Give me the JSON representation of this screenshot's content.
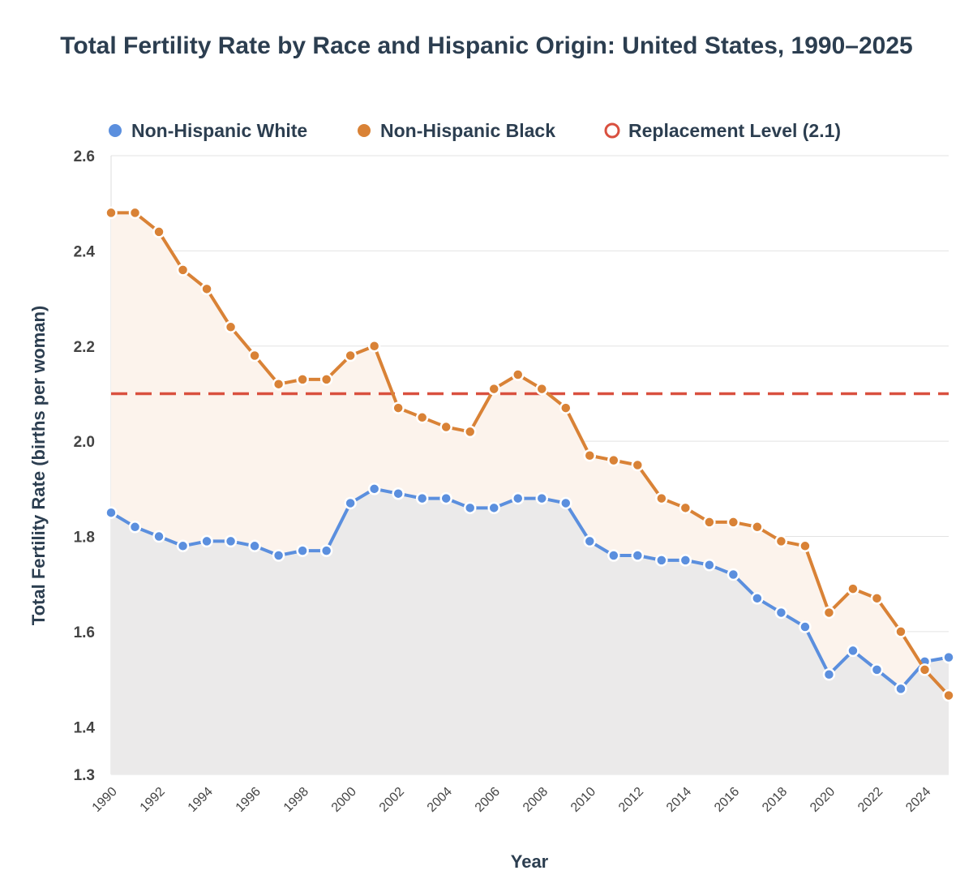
{
  "chart_data": {
    "type": "line",
    "title": "Total Fertility Rate by Race and Hispanic Origin: United States, 1990–2025",
    "xlabel": "Year",
    "ylabel": "Total Fertility Rate (births per woman)",
    "ylim": [
      1.3,
      2.6
    ],
    "yticks": [
      1.3,
      1.4,
      1.6,
      1.8,
      2.0,
      2.2,
      2.4,
      2.6
    ],
    "ytick_labels": [
      "1.3",
      "1.4",
      "1.6",
      "1.8",
      "2.0",
      "2.2",
      "2.4",
      "2.6"
    ],
    "xlim": [
      1990,
      2025
    ],
    "xtick_labels": [
      "1990",
      "1992",
      "1994",
      "1996",
      "1998",
      "2000",
      "2002",
      "2004",
      "2006",
      "2008",
      "2010",
      "2012",
      "2014",
      "2016",
      "2018",
      "2020",
      "2022",
      "2024"
    ],
    "grid": true,
    "legend_placement": "top",
    "x": [
      1990,
      1991,
      1992,
      1993,
      1994,
      1995,
      1996,
      1997,
      1998,
      1999,
      2000,
      2001,
      2002,
      2003,
      2004,
      2005,
      2006,
      2007,
      2008,
      2009,
      2010,
      2011,
      2012,
      2013,
      2014,
      2015,
      2016,
      2017,
      2018,
      2019,
      2020,
      2021,
      2022,
      2023,
      2024,
      2025
    ],
    "series": [
      {
        "name": "Non-Hispanic White",
        "color": "#5b8fde",
        "fill": "#e9e8ea",
        "values": [
          1.85,
          1.82,
          1.8,
          1.78,
          1.79,
          1.79,
          1.78,
          1.76,
          1.77,
          1.77,
          1.87,
          1.9,
          1.89,
          1.88,
          1.88,
          1.86,
          1.86,
          1.88,
          1.88,
          1.87,
          1.79,
          1.76,
          1.76,
          1.75,
          1.75,
          1.74,
          1.72,
          1.67,
          1.64,
          1.61,
          1.51,
          1.56,
          1.52,
          1.48,
          1.537,
          1.546
        ]
      },
      {
        "name": "Non-Hispanic Black",
        "color": "#d98236",
        "fill": "#fcf3ec",
        "values": [
          2.48,
          2.48,
          2.44,
          2.36,
          2.32,
          2.24,
          2.18,
          2.12,
          2.13,
          2.13,
          2.18,
          2.2,
          2.07,
          2.05,
          2.03,
          2.02,
          2.11,
          2.14,
          2.11,
          2.07,
          1.97,
          1.96,
          1.95,
          1.88,
          1.86,
          1.83,
          1.83,
          1.82,
          1.79,
          1.78,
          1.64,
          1.69,
          1.67,
          1.6,
          1.52,
          1.466
        ]
      }
    ],
    "reference_line": {
      "name": "Replacement Level (2.1)",
      "value": 2.1,
      "color": "#d9503f",
      "style": "dashed"
    }
  }
}
